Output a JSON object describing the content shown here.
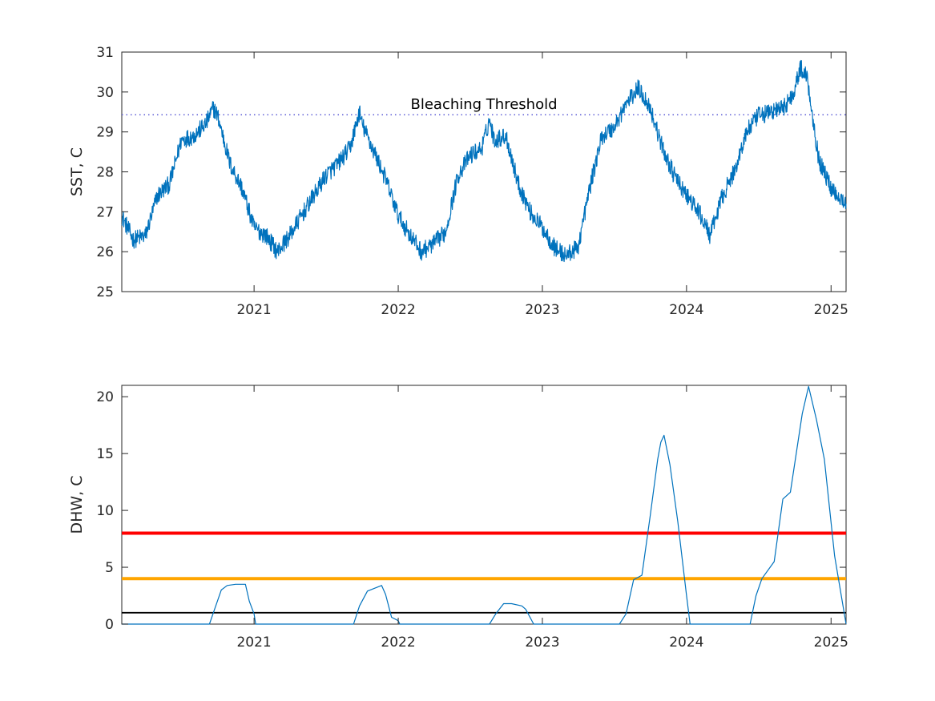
{
  "chart_data": [
    {
      "type": "line",
      "title": "",
      "xlabel": "",
      "ylabel": "SST, C",
      "xlim": [
        "2020-02-01",
        "2025-02-08"
      ],
      "ylim": [
        25,
        31
      ],
      "x_ticks": [
        "2021",
        "2022",
        "2023",
        "2024",
        "2025"
      ],
      "y_ticks": [
        25,
        26,
        27,
        28,
        29,
        30,
        31
      ],
      "grid": false,
      "legend": "none",
      "series": [
        {
          "color": "#0072BD",
          "x": [
            "2020-02-01",
            "2020-03-01",
            "2020-04-01",
            "2020-05-01",
            "2020-06-01",
            "2020-07-01",
            "2020-08-01",
            "2020-09-01",
            "2020-09-20",
            "2020-10-01",
            "2020-11-01",
            "2020-12-01",
            "2021-01-01",
            "2021-02-01",
            "2021-03-01",
            "2021-04-01",
            "2021-05-01",
            "2021-06-01",
            "2021-07-01",
            "2021-08-01",
            "2021-09-01",
            "2021-09-25",
            "2021-10-01",
            "2021-11-01",
            "2021-12-01",
            "2022-01-01",
            "2022-02-01",
            "2022-03-01",
            "2022-04-01",
            "2022-05-01",
            "2022-06-01",
            "2022-07-01",
            "2022-08-01",
            "2022-08-20",
            "2022-09-01",
            "2022-10-01",
            "2022-11-01",
            "2022-12-01",
            "2023-01-01",
            "2023-02-01",
            "2023-03-01",
            "2023-04-01",
            "2023-05-01",
            "2023-06-01",
            "2023-07-01",
            "2023-08-01",
            "2023-09-01",
            "2023-09-20",
            "2023-10-01",
            "2023-11-01",
            "2023-12-01",
            "2024-01-01",
            "2024-02-01",
            "2024-03-01",
            "2024-04-01",
            "2024-05-01",
            "2024-06-01",
            "2024-07-01",
            "2024-08-01",
            "2024-09-01",
            "2024-09-25",
            "2024-10-15",
            "2024-11-01",
            "2024-12-01",
            "2025-01-01",
            "2025-02-08"
          ],
          "values": [
            26.9,
            26.3,
            26.4,
            27.4,
            27.7,
            28.8,
            28.9,
            29.2,
            29.6,
            29.4,
            28.2,
            27.6,
            26.6,
            26.4,
            26.0,
            26.4,
            26.9,
            27.4,
            27.9,
            28.2,
            28.6,
            29.5,
            29.2,
            28.5,
            27.8,
            26.9,
            26.4,
            26.0,
            26.2,
            26.5,
            27.9,
            28.4,
            28.6,
            29.3,
            28.8,
            28.9,
            27.7,
            27.0,
            26.6,
            26.1,
            25.9,
            26.1,
            27.6,
            28.9,
            29.1,
            29.7,
            30.1,
            29.8,
            29.6,
            28.6,
            27.9,
            27.4,
            27.0,
            26.4,
            27.4,
            28.0,
            29.0,
            29.4,
            29.5,
            29.6,
            29.9,
            30.6,
            30.4,
            28.3,
            27.6,
            27.2
          ]
        }
      ],
      "annotations": [
        {
          "type": "hline",
          "y": 29.43,
          "style": "dotted",
          "color": "#5b5bd6",
          "label": "Bleaching Threshold"
        }
      ]
    },
    {
      "type": "line",
      "title": "",
      "xlabel": "",
      "ylabel": "DHW, C",
      "xlim": [
        "2020-02-01",
        "2025-02-08"
      ],
      "ylim": [
        0,
        21
      ],
      "x_ticks": [
        "2021",
        "2022",
        "2023",
        "2024",
        "2025"
      ],
      "y_ticks": [
        0,
        5,
        10,
        15,
        20
      ],
      "grid": false,
      "legend": "none",
      "series": [
        {
          "color": "#0072BD",
          "x": [
            "2020-02-01",
            "2020-09-10",
            "2020-09-25",
            "2020-10-10",
            "2020-10-25",
            "2020-11-15",
            "2020-12-10",
            "2020-12-20",
            "2021-01-01",
            "2021-01-05",
            "2021-09-10",
            "2021-09-25",
            "2021-10-15",
            "2021-11-20",
            "2021-11-30",
            "2021-12-15",
            "2022-01-01",
            "2022-01-05",
            "2022-08-20",
            "2022-09-05",
            "2022-09-25",
            "2022-10-15",
            "2022-11-10",
            "2022-11-20",
            "2022-12-10",
            "2023-07-15",
            "2023-08-01",
            "2023-08-20",
            "2023-09-10",
            "2023-10-01",
            "2023-10-20",
            "2023-10-28",
            "2023-11-05",
            "2023-11-20",
            "2023-12-10",
            "2024-01-01",
            "2024-01-10",
            "2024-06-10",
            "2024-06-25",
            "2024-07-10",
            "2024-08-10",
            "2024-09-01",
            "2024-09-20",
            "2024-10-20",
            "2024-11-05",
            "2024-11-25",
            "2024-12-15",
            "2025-01-10",
            "2025-02-08"
          ],
          "values": [
            0,
            0,
            1.5,
            3.0,
            3.4,
            3.5,
            3.5,
            2.0,
            0.9,
            0,
            0,
            1.6,
            2.9,
            3.4,
            2.6,
            0.6,
            0.3,
            0,
            0,
            0.9,
            1.8,
            1.8,
            1.6,
            1.3,
            0,
            0,
            0.9,
            3.9,
            4.3,
            9.5,
            14.5,
            16.0,
            16.6,
            14.0,
            9.0,
            2.5,
            0,
            0,
            2.5,
            4.0,
            5.5,
            11.0,
            11.6,
            18.5,
            20.9,
            18.0,
            14.5,
            6.0,
            0
          ]
        }
      ],
      "annotations": [
        {
          "type": "hline",
          "y": 8,
          "color": "#FF0000"
        },
        {
          "type": "hline",
          "y": 4,
          "color": "#FFA500"
        },
        {
          "type": "hline",
          "y": 1,
          "color": "#000000"
        }
      ]
    }
  ]
}
